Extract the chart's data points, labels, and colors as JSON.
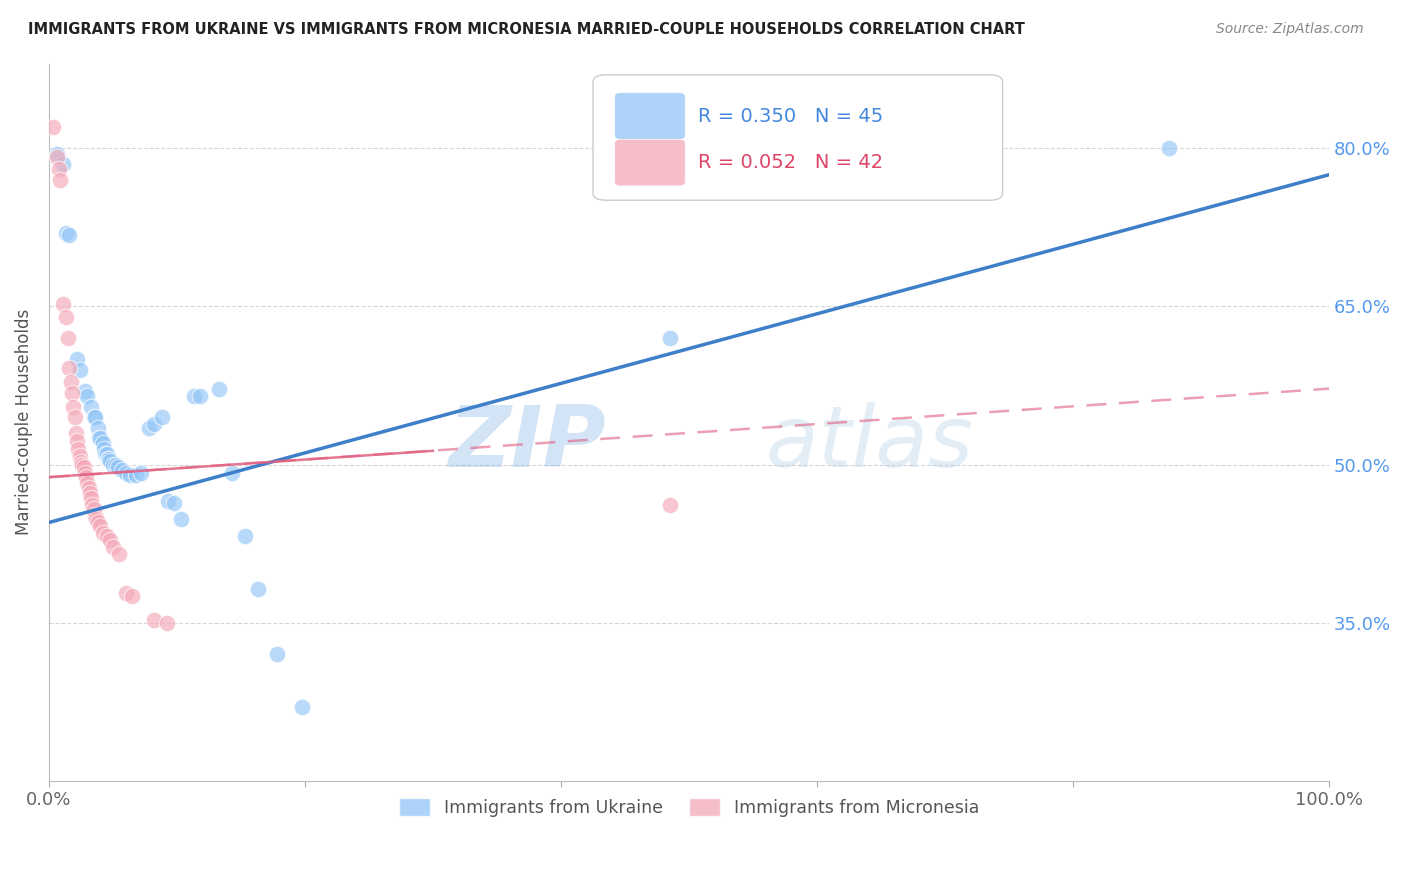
{
  "title": "IMMIGRANTS FROM UKRAINE VS IMMIGRANTS FROM MICRONESIA MARRIED-COUPLE HOUSEHOLDS CORRELATION CHART",
  "source": "Source: ZipAtlas.com",
  "ylabel": "Married-couple Households",
  "ytick_labels": [
    "80.0%",
    "65.0%",
    "50.0%",
    "35.0%"
  ],
  "ytick_values": [
    0.8,
    0.65,
    0.5,
    0.35
  ],
  "xlim": [
    0.0,
    1.0
  ],
  "ylim": [
    0.2,
    0.88
  ],
  "ukraine_color": "#92c5f7",
  "micronesia_color": "#f4a8b8",
  "ukraine_line_color": "#3d7fc9",
  "micronesia_line_color": "#e06080",
  "ukraine_line": [
    [
      0.0,
      0.445
    ],
    [
      1.0,
      0.775
    ]
  ],
  "micronesia_line": [
    [
      0.0,
      0.488
    ],
    [
      1.0,
      0.572
    ]
  ],
  "ukraine_scatter": [
    [
      0.006,
      0.795
    ],
    [
      0.011,
      0.785
    ],
    [
      0.013,
      0.72
    ],
    [
      0.016,
      0.718
    ],
    [
      0.022,
      0.6
    ],
    [
      0.024,
      0.59
    ],
    [
      0.028,
      0.57
    ],
    [
      0.03,
      0.565
    ],
    [
      0.033,
      0.555
    ],
    [
      0.035,
      0.545
    ],
    [
      0.036,
      0.545
    ],
    [
      0.038,
      0.535
    ],
    [
      0.039,
      0.525
    ],
    [
      0.04,
      0.525
    ],
    [
      0.042,
      0.52
    ],
    [
      0.043,
      0.515
    ],
    [
      0.044,
      0.51
    ],
    [
      0.045,
      0.51
    ],
    [
      0.046,
      0.505
    ],
    [
      0.047,
      0.505
    ],
    [
      0.048,
      0.503
    ],
    [
      0.05,
      0.5
    ],
    [
      0.052,
      0.5
    ],
    [
      0.054,
      0.498
    ],
    [
      0.057,
      0.495
    ],
    [
      0.06,
      0.492
    ],
    [
      0.063,
      0.49
    ],
    [
      0.068,
      0.49
    ],
    [
      0.072,
      0.492
    ],
    [
      0.078,
      0.535
    ],
    [
      0.082,
      0.538
    ],
    [
      0.088,
      0.545
    ],
    [
      0.093,
      0.465
    ],
    [
      0.098,
      0.463
    ],
    [
      0.103,
      0.448
    ],
    [
      0.113,
      0.565
    ],
    [
      0.118,
      0.565
    ],
    [
      0.133,
      0.572
    ],
    [
      0.143,
      0.492
    ],
    [
      0.153,
      0.432
    ],
    [
      0.163,
      0.382
    ],
    [
      0.178,
      0.32
    ],
    [
      0.198,
      0.27
    ],
    [
      0.485,
      0.62
    ],
    [
      0.875,
      0.8
    ]
  ],
  "micronesia_scatter": [
    [
      0.003,
      0.82
    ],
    [
      0.006,
      0.792
    ],
    [
      0.008,
      0.78
    ],
    [
      0.009,
      0.77
    ],
    [
      0.011,
      0.652
    ],
    [
      0.013,
      0.64
    ],
    [
      0.015,
      0.62
    ],
    [
      0.016,
      0.592
    ],
    [
      0.017,
      0.578
    ],
    [
      0.018,
      0.568
    ],
    [
      0.019,
      0.555
    ],
    [
      0.02,
      0.545
    ],
    [
      0.021,
      0.53
    ],
    [
      0.022,
      0.522
    ],
    [
      0.023,
      0.515
    ],
    [
      0.024,
      0.508
    ],
    [
      0.025,
      0.502
    ],
    [
      0.026,
      0.5
    ],
    [
      0.027,
      0.498
    ],
    [
      0.028,
      0.492
    ],
    [
      0.029,
      0.488
    ],
    [
      0.03,
      0.482
    ],
    [
      0.031,
      0.478
    ],
    [
      0.032,
      0.473
    ],
    [
      0.033,
      0.468
    ],
    [
      0.034,
      0.462
    ],
    [
      0.035,
      0.458
    ],
    [
      0.036,
      0.452
    ],
    [
      0.037,
      0.448
    ],
    [
      0.038,
      0.445
    ],
    [
      0.04,
      0.442
    ],
    [
      0.042,
      0.435
    ],
    [
      0.045,
      0.432
    ],
    [
      0.048,
      0.428
    ],
    [
      0.05,
      0.422
    ],
    [
      0.055,
      0.415
    ],
    [
      0.06,
      0.378
    ],
    [
      0.065,
      0.375
    ],
    [
      0.082,
      0.352
    ],
    [
      0.092,
      0.35
    ],
    [
      0.485,
      0.462
    ]
  ],
  "watermark_zip": "ZIP",
  "watermark_atlas": "atlas",
  "background_color": "#ffffff",
  "grid_color": "#cccccc"
}
